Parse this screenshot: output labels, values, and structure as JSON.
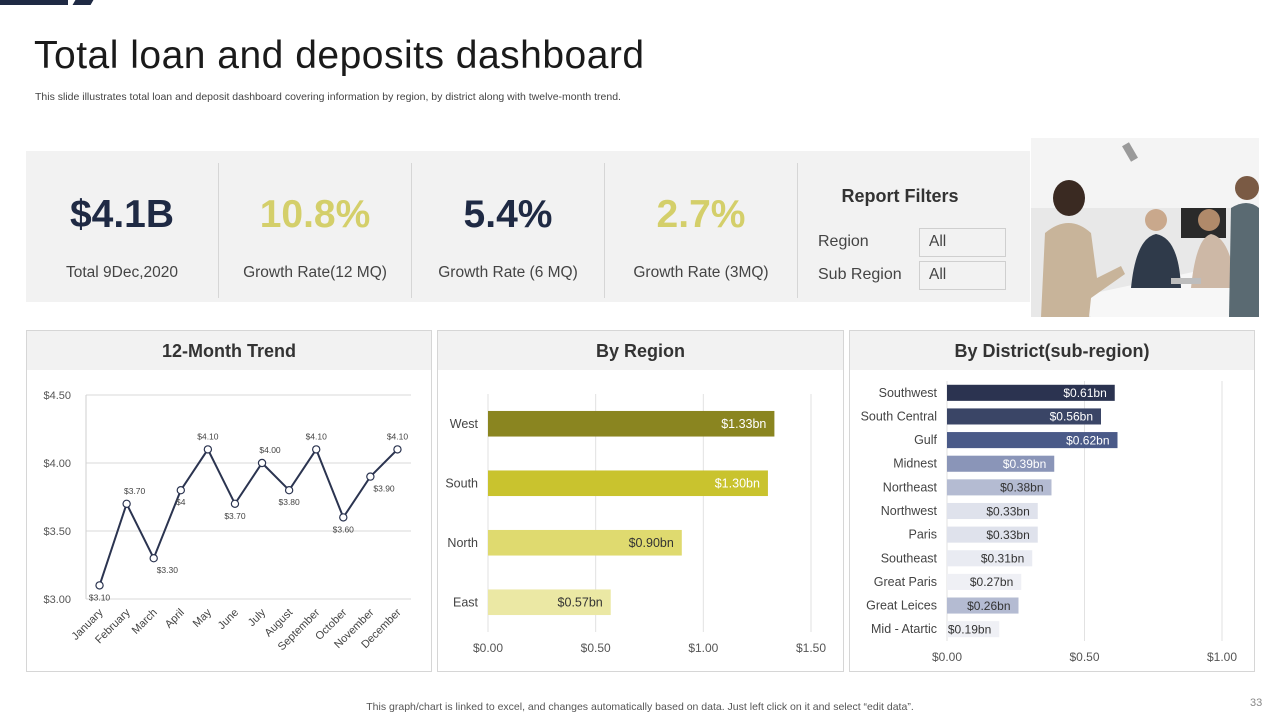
{
  "header": {
    "title": "Total loan and deposits dashboard",
    "subtitle": "This slide illustrates total loan and deposit dashboard covering information by region, by district along with twelve-month trend."
  },
  "kpis": [
    {
      "value": "$4.1B",
      "label": "Total 9Dec,2020",
      "color": "#1f2a44"
    },
    {
      "value": "10.8%",
      "label": "Growth Rate(12 MQ)",
      "color": "#d4cf6a"
    },
    {
      "value": "5.4%",
      "label": "Growth Rate (6 MQ)",
      "color": "#1f2a44"
    },
    {
      "value": "2.7%",
      "label": "Growth Rate (3MQ)",
      "color": "#d4cf6a"
    }
  ],
  "filters": {
    "title": "Report Filters",
    "items": [
      {
        "label": "Region",
        "value": "All"
      },
      {
        "label": "Sub Region",
        "value": "All"
      }
    ]
  },
  "photo": {
    "description_icon": "meeting-photo"
  },
  "panels": {
    "trend_title": "12-Month Trend",
    "region_title": "By Region",
    "district_title": "By District(sub-region)"
  },
  "chart_data": [
    {
      "type": "line",
      "title": "12-Month Trend",
      "categories": [
        "January",
        "February",
        "March",
        "April",
        "May",
        "June",
        "July",
        "August",
        "September",
        "October",
        "November",
        "December"
      ],
      "values": [
        3.1,
        3.7,
        3.3,
        3.8,
        4.1,
        3.7,
        4.0,
        3.8,
        4.1,
        3.6,
        3.9,
        4.1
      ],
      "data_labels": [
        "$3.10",
        "$3.70",
        "$3.30",
        "$4",
        "$4.10",
        "$3.70",
        "$4.00",
        "$3.80",
        "$4.10",
        "$3.60",
        "$3.90",
        "$4.10"
      ],
      "ylim": [
        3.0,
        4.5
      ],
      "yticks": [
        "$3.00",
        "$3.50",
        "$4.00",
        "$4.50"
      ],
      "ytick_values": [
        3.0,
        3.5,
        4.0,
        4.5
      ],
      "line_color": "#2b3450"
    },
    {
      "type": "bar",
      "orientation": "horizontal",
      "title": "By Region",
      "categories": [
        "West",
        "South",
        "North",
        "East"
      ],
      "values": [
        1.33,
        1.3,
        0.9,
        0.57
      ],
      "data_labels": [
        "$1.33bn",
        "$1.30bn",
        "$0.90bn",
        "$0.57bn"
      ],
      "colors": [
        "#8a8520",
        "#c9c32e",
        "#dfda6f",
        "#ebe8a4"
      ],
      "label_colors": [
        "#ffffff",
        "#ffffff",
        "#333333",
        "#333333"
      ],
      "xlim": [
        0,
        1.5
      ],
      "xticks": [
        "$0.00",
        "$0.50",
        "$1.00",
        "$1.50"
      ],
      "xtick_values": [
        0,
        0.5,
        1.0,
        1.5
      ]
    },
    {
      "type": "bar",
      "orientation": "horizontal",
      "title": "By District(sub-region)",
      "categories": [
        "Southwest",
        "South Central",
        "Gulf",
        "Midnest",
        "Northeast",
        "Northwest",
        "Paris",
        "Southeast",
        "Great Paris",
        "Great Leices",
        "Mid - Atartic"
      ],
      "values": [
        0.61,
        0.56,
        0.62,
        0.39,
        0.38,
        0.33,
        0.33,
        0.31,
        0.27,
        0.26,
        0.19
      ],
      "data_labels": [
        "$0.61bn",
        "$0.56bn",
        "$0.62bn",
        "$0.39bn",
        "$0.38bn",
        "$0.33bn",
        "$0.33bn",
        "$0.31bn",
        "$0.27bn",
        "$0.26bn",
        "$0.19bn"
      ],
      "colors": [
        "#2b3350",
        "#3a4566",
        "#4a5a88",
        "#8a95b8",
        "#b4bbd2",
        "#dfe2ec",
        "#dfe2ec",
        "#e9ebf2",
        "#eff0f5",
        "#b4bbd2",
        "#eff0f5"
      ],
      "label_colors": [
        "#ffffff",
        "#ffffff",
        "#ffffff",
        "#ffffff",
        "#333333",
        "#333333",
        "#333333",
        "#333333",
        "#333333",
        "#333333",
        "#333333"
      ],
      "xlim": [
        0,
        1.0
      ],
      "xticks": [
        "$0.00",
        "$0.50",
        "$1.00"
      ],
      "xtick_values": [
        0,
        0.5,
        1.0
      ]
    }
  ],
  "footer": {
    "note": "This graph/chart is linked to excel, and changes automatically based on data. Just left click on it and select “edit data”.",
    "page_number": "33"
  }
}
